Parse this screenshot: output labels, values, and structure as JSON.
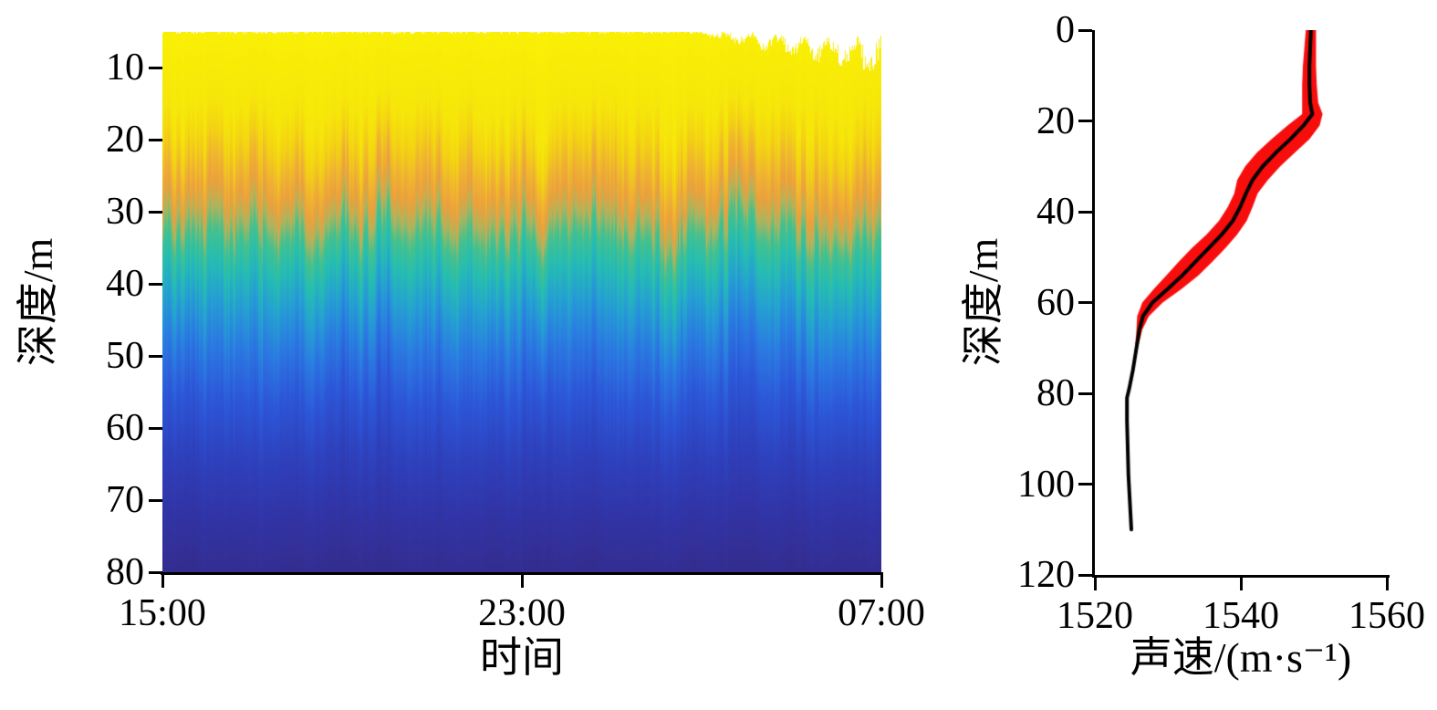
{
  "chart_data": [
    {
      "type": "heatmap",
      "title": "",
      "xlabel": "时间",
      "ylabel": "深度/m",
      "x_ticks": [
        {
          "label": "15:00",
          "t": 0
        },
        {
          "label": "23:00",
          "t": 0.5
        },
        {
          "label": "07:00",
          "t": 1
        }
      ],
      "y_ticks": [
        10,
        20,
        30,
        40,
        50,
        60,
        70,
        80
      ],
      "ylim": [
        5,
        80
      ],
      "time_span_hours": 16,
      "grid": false,
      "colormap": [
        {
          "depth": 5,
          "color": "#f9f005"
        },
        {
          "depth": 16,
          "color": "#f6e60a"
        },
        {
          "depth": 21,
          "color": "#f3d214"
        },
        {
          "depth": 25,
          "color": "#efb232"
        },
        {
          "depth": 28,
          "color": "#eca03c"
        },
        {
          "depth": 31,
          "color": "#b0b45c"
        },
        {
          "depth": 34,
          "color": "#45c18d"
        },
        {
          "depth": 38,
          "color": "#25bdb2"
        },
        {
          "depth": 43,
          "color": "#259fd3"
        },
        {
          "depth": 49,
          "color": "#2b79e2"
        },
        {
          "depth": 56,
          "color": "#2c57d8"
        },
        {
          "depth": 64,
          "color": "#2e41bd"
        },
        {
          "depth": 72,
          "color": "#3134a6"
        },
        {
          "depth": 80,
          "color": "#342d90"
        }
      ],
      "surface_gap": {
        "start_t": 0.72,
        "jitter": 1.6
      },
      "striation": {
        "amplitude_m": 2.4,
        "fine_amplitude_m": 2.3
      }
    },
    {
      "type": "line",
      "title": "",
      "xlabel": "声速/(m·s⁻¹)",
      "ylabel": "深度/m",
      "x_ticks": [
        1520,
        1540,
        1560
      ],
      "y_ticks": [
        0,
        20,
        40,
        60,
        80,
        100,
        120
      ],
      "xlim": [
        1520,
        1560
      ],
      "ylim": [
        0,
        120
      ],
      "line_color": "#000000",
      "band_color": "#f80d0d",
      "profile": {
        "depths": [
          0,
          4,
          8,
          12,
          16,
          18.5,
          21,
          24,
          27,
          30,
          33,
          36,
          39,
          42,
          45,
          48,
          51,
          54,
          57,
          60,
          63,
          66,
          70,
          75,
          79,
          81,
          86,
          92,
          98,
          104,
          110
        ],
        "mean": [
          1549.6,
          1549.5,
          1549.4,
          1549.4,
          1549.5,
          1549.8,
          1548.6,
          1546.8,
          1544.8,
          1543.0,
          1541.6,
          1540.7,
          1539.9,
          1538.9,
          1537.4,
          1535.6,
          1533.8,
          1532.0,
          1530.0,
          1527.9,
          1526.6,
          1526.1,
          1525.7,
          1525.2,
          1524.7,
          1524.4,
          1524.4,
          1524.5,
          1524.6,
          1524.8,
          1525.0
        ],
        "spread": [
          0.7,
          0.8,
          0.9,
          1.0,
          1.1,
          1.4,
          2.2,
          2.6,
          2.6,
          2.4,
          2.1,
          1.6,
          1.7,
          1.9,
          2.1,
          2.3,
          2.3,
          2.2,
          1.9,
          1.4,
          0.8,
          0.4,
          0.2,
          0.1,
          0.08,
          0.06,
          0.05,
          0.05,
          0.05,
          0.05,
          0.05
        ]
      }
    }
  ]
}
